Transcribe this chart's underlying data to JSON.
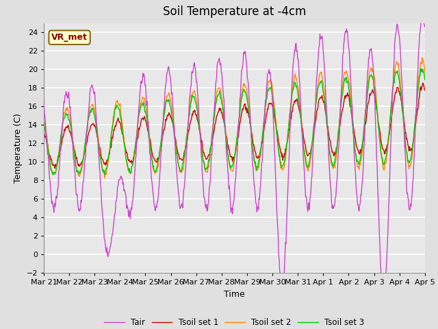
{
  "title": "Soil Temperature at -4cm",
  "xlabel": "Time",
  "ylabel": "Temperature (C)",
  "ylim": [
    -2,
    25
  ],
  "yticks": [
    -2,
    0,
    2,
    4,
    6,
    8,
    10,
    12,
    14,
    16,
    18,
    20,
    22,
    24
  ],
  "x_labels": [
    "Mar 21",
    "Mar 22",
    "Mar 23",
    "Mar 24",
    "Mar 25",
    "Mar 26",
    "Mar 27",
    "Mar 28",
    "Mar 29",
    "Mar 30",
    "Mar 31",
    "Apr 1",
    "Apr 2",
    "Apr 3",
    "Apr 4",
    "Apr 5"
  ],
  "annotation_text": "VR_met",
  "annotation_bg": "#ffffcc",
  "annotation_border": "#8b6914",
  "annotation_text_color": "#8b0000",
  "colors": {
    "Tair": "#cc44cc",
    "Tsoil1": "#cc0000",
    "Tsoil2": "#ff8800",
    "Tsoil3": "#00cc00"
  },
  "legend_labels": [
    "Tair",
    "Tsoil set 1",
    "Tsoil set 2",
    "Tsoil set 3"
  ],
  "background_color": "#e0e0e0",
  "plot_bg": "#e8e8e8",
  "grid_color": "#ffffff",
  "title_fontsize": 12,
  "label_fontsize": 9,
  "tick_fontsize": 8
}
